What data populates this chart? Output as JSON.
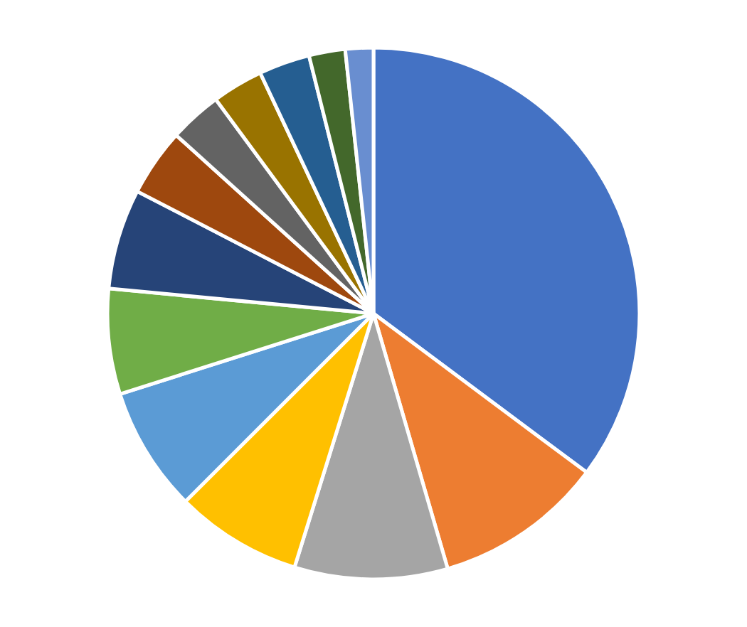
{
  "chart_data": {
    "type": "pie",
    "categories": [
      null,
      null,
      null,
      null,
      null,
      null,
      null,
      null,
      null,
      null,
      null,
      null,
      null
    ],
    "values": [
      35.2,
      10.3,
      9.3,
      7.7,
      7.6,
      6.4,
      6.1,
      4.1,
      3.2,
      3.1,
      3.1,
      2.2,
      1.7
    ],
    "colors": [
      "#4472c4",
      "#ed7d31",
      "#a5a5a5",
      "#ffc000",
      "#5b9bd5",
      "#70ad47",
      "#264478",
      "#9e480e",
      "#636363",
      "#997300",
      "#255e91",
      "#43682b",
      "#698ed0"
    ]
  }
}
